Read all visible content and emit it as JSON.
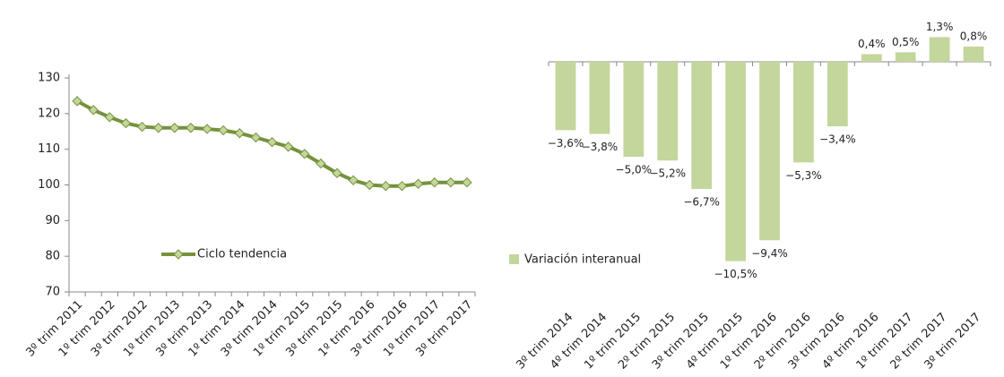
{
  "chart_data": [
    {
      "type": "line",
      "categories": [
        "3º trim 2011",
        null,
        "1º trim 2012",
        null,
        "3º trim 2012",
        null,
        "1º trim 2013",
        null,
        "3º trim 2013",
        null,
        "1º trim 2014",
        null,
        "3º trim 2014",
        null,
        "1º trim 2015",
        null,
        "3º trim 2015",
        null,
        "1º trim 2016",
        null,
        "3º trim 2016",
        null,
        "1º trim 2017",
        null,
        "3º trim 2017"
      ],
      "series": [
        {
          "name": "Ciclo tendencia",
          "color": "#76923c",
          "values": [
            123.5,
            121,
            119,
            117.3,
            116.3,
            116,
            116,
            116,
            115.7,
            115.3,
            114.5,
            113.3,
            112,
            110.7,
            108.7,
            106,
            103.3,
            101.3,
            100,
            99.7,
            99.7,
            100.3,
            100.7,
            100.7,
            100.7
          ]
        }
      ],
      "ylim": [
        70,
        130
      ],
      "yticks": [
        70,
        80,
        90,
        100,
        110,
        120,
        130
      ]
    },
    {
      "type": "bar",
      "categories": [
        "3º trim 2014",
        "4º trim 2014",
        "1º trim 2015",
        "2º trim 2015",
        "3º trim 2015",
        "4º trim 2015",
        "1º trim 2016",
        "2º trim 2016",
        "3º trim 2016",
        "4º trim 2016",
        "1º trim 2017",
        "2º trim 2017",
        "3º trim 2017"
      ],
      "series": [
        {
          "name": "Variación interanual",
          "color": "#c3d69b",
          "values": [
            -3.6,
            -3.8,
            -5.0,
            -5.2,
            -6.7,
            -10.5,
            -9.4,
            -5.3,
            -3.4,
            0.4,
            0.5,
            1.3,
            0.8
          ],
          "value_labels": [
            "−3,6%",
            "−3,8%",
            "−5,0%",
            "−5,2%",
            "−6,7%",
            "−10,5%",
            "−9,4%",
            "−5,3%",
            "−3,4%",
            "0,4%",
            "0,5%",
            "1,3%",
            "0,8%"
          ]
        }
      ]
    }
  ]
}
